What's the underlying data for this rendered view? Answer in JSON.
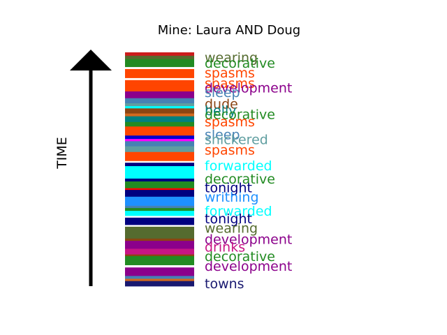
{
  "chart_data": {
    "type": "bar",
    "title": "Mine: Laura AND Doug",
    "ylabel": "TIME",
    "stripes": [
      {
        "color": "#cc1c1c",
        "span": 0.6
      },
      {
        "color": "#556b2f",
        "span": 0.6
      },
      {
        "color": "#228b22",
        "span": 1.4
      },
      {
        "color": "#ffffff",
        "span": 0.35
      },
      {
        "color": "#ff4500",
        "span": 1.6
      },
      {
        "color": "#ffffff",
        "span": 0.35
      },
      {
        "color": "#ff4500",
        "span": 1.0
      },
      {
        "color": "#ff4500",
        "span": 1.0
      },
      {
        "color": "#8b008b",
        "span": 1.2
      },
      {
        "color": "#4682b4",
        "span": 0.9
      },
      {
        "color": "#5f9ea0",
        "span": 0.5
      },
      {
        "color": "#00ffff",
        "span": 0.4
      },
      {
        "color": "#8b4513",
        "span": 0.9
      },
      {
        "color": "#d2691e",
        "span": 0.5
      },
      {
        "color": "#008080",
        "span": 1.0
      },
      {
        "color": "#228b22",
        "span": 0.8
      },
      {
        "color": "#ff4500",
        "span": 1.6
      },
      {
        "color": "#0000cd",
        "span": 0.6
      },
      {
        "color": "#ff00ff",
        "span": 0.4
      },
      {
        "color": "#4682b4",
        "span": 0.9
      },
      {
        "color": "#5f9ea0",
        "span": 1.0
      },
      {
        "color": "#ff4500",
        "span": 1.6
      },
      {
        "color": "#ffffff",
        "span": 0.3
      },
      {
        "color": "#000080",
        "span": 0.6
      },
      {
        "color": "#00ffff",
        "span": 2.2
      },
      {
        "color": "#000080",
        "span": 0.5
      },
      {
        "color": "#228b22",
        "span": 1.2
      },
      {
        "color": "#ff0000",
        "span": 0.3
      },
      {
        "color": "#000080",
        "span": 1.2
      },
      {
        "color": "#1e90ff",
        "span": 1.6
      },
      {
        "color": "#4682b4",
        "span": 0.4
      },
      {
        "color": "#228b22",
        "span": 0.5
      },
      {
        "color": "#00ffff",
        "span": 0.9
      },
      {
        "color": "#ffffff",
        "span": 0.3
      },
      {
        "color": "#000080",
        "span": 1.3
      },
      {
        "color": "#ffffff",
        "span": 0.3
      },
      {
        "color": "#556b2f",
        "span": 2.1
      },
      {
        "color": "#8b4513",
        "span": 0.4
      },
      {
        "color": "#8b008b",
        "span": 1.4
      },
      {
        "color": "#c71585",
        "span": 1.0
      },
      {
        "color": "#8b4513",
        "span": 0.3
      },
      {
        "color": "#228b22",
        "span": 1.6
      },
      {
        "color": "#ffffff",
        "span": 0.4
      },
      {
        "color": "#8b008b",
        "span": 1.5
      },
      {
        "color": "#4682b4",
        "span": 0.5
      },
      {
        "color": "#d2691e",
        "span": 0.4
      },
      {
        "color": "#191970",
        "span": 0.9
      }
    ],
    "labels": [
      {
        "text": "wearing",
        "color": "#556b2f",
        "pos": 0.0215
      },
      {
        "text": "decorative",
        "color": "#228b22",
        "pos": 0.0446
      },
      {
        "text": "spasms",
        "color": "#ff4500",
        "pos": 0.0862
      },
      {
        "text": "spasms",
        "color": "#ff4500",
        "pos": 0.1308
      },
      {
        "text": "development",
        "color": "#8b008b",
        "pos": 0.1508
      },
      {
        "text": "sleep",
        "color": "#4682b4",
        "pos": 0.1708
      },
      {
        "text": "dude",
        "color": "#8b4513",
        "pos": 0.22
      },
      {
        "text": "belly",
        "color": "#008080",
        "pos": 0.2477
      },
      {
        "text": "decorative",
        "color": "#228b22",
        "pos": 0.2646
      },
      {
        "text": "spasms",
        "color": "#ff4500",
        "pos": 0.2954
      },
      {
        "text": "sleep",
        "color": "#4682b4",
        "pos": 0.3508
      },
      {
        "text": "snickered",
        "color": "#5f9ea0",
        "pos": 0.3723
      },
      {
        "text": "spasms",
        "color": "#ff4500",
        "pos": 0.4169
      },
      {
        "text": "forwarded",
        "color": "#00ffff",
        "pos": 0.4831
      },
      {
        "text": "decorative",
        "color": "#228b22",
        "pos": 0.54
      },
      {
        "text": "tonight",
        "color": "#000080",
        "pos": 0.5769
      },
      {
        "text": "writhing",
        "color": "#1e90ff",
        "pos": 0.6185
      },
      {
        "text": "forwarded",
        "color": "#00ffff",
        "pos": 0.6769
      },
      {
        "text": "tonight",
        "color": "#000080",
        "pos": 0.7108
      },
      {
        "text": "wearing",
        "color": "#556b2f",
        "pos": 0.7508
      },
      {
        "text": "development",
        "color": "#8b008b",
        "pos": 0.7985
      },
      {
        "text": "drinks",
        "color": "#c71585",
        "pos": 0.8308
      },
      {
        "text": "decorative",
        "color": "#228b22",
        "pos": 0.8723
      },
      {
        "text": "development",
        "color": "#8b008b",
        "pos": 0.9138
      },
      {
        "text": "towns",
        "color": "#191970",
        "pos": 0.9877
      }
    ]
  }
}
